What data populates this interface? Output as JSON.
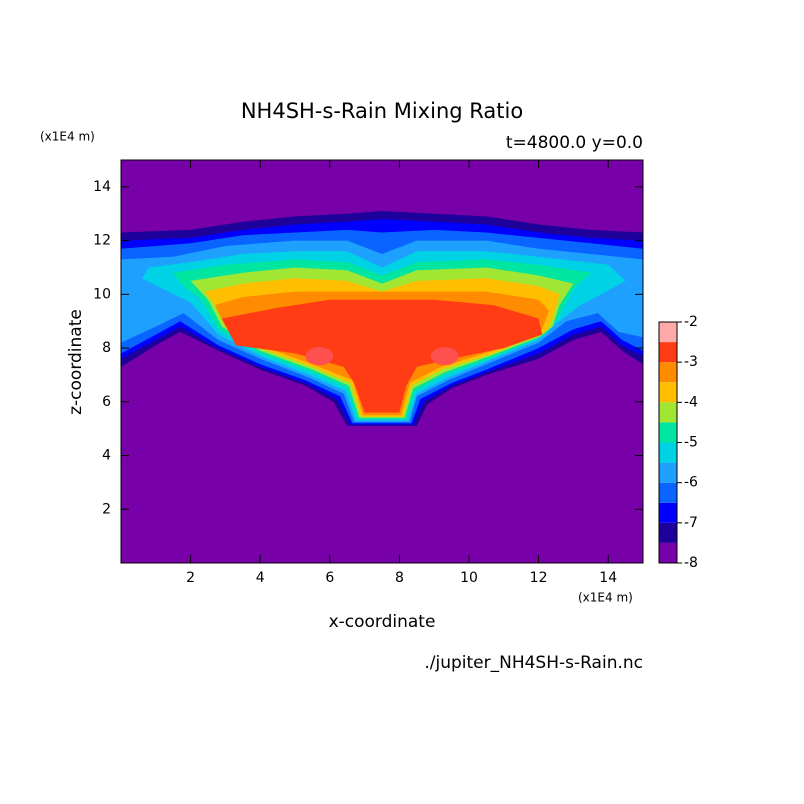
{
  "chart_data": {
    "type": "contour",
    "title": "NH4SH-s-Rain Mixing Ratio",
    "subtitle": "t=4800.0 y=0.0",
    "xlabel": "x-coordinate",
    "ylabel": "z-coordinate",
    "x_unit": "(x1E4 m)",
    "y_unit": "(x1E4 m)",
    "source": "./jupiter_NH4SH-s-Rain.nc",
    "xlim": [
      0,
      15
    ],
    "ylim": [
      0,
      15
    ],
    "xticks": [
      2,
      4,
      6,
      8,
      10,
      12,
      14
    ],
    "yticks": [
      2,
      4,
      6,
      8,
      10,
      12,
      14
    ],
    "levels": [
      -8,
      -7.5,
      -7,
      -6.5,
      -6,
      -5.5,
      -5,
      -4.5,
      -4,
      -3.5,
      -3,
      -2.5,
      -2
    ],
    "colors": [
      "#7800a8",
      "#1e009b",
      "#0000ff",
      "#0a64ff",
      "#1ea0ff",
      "#00d2e6",
      "#00e6a0",
      "#a0e632",
      "#ffbe00",
      "#ff8c00",
      "#ff3c14",
      "#ffaaaa"
    ],
    "colorbar_ticks": [
      -2,
      -3,
      -4,
      -5,
      -6,
      -7,
      -8
    ]
  }
}
